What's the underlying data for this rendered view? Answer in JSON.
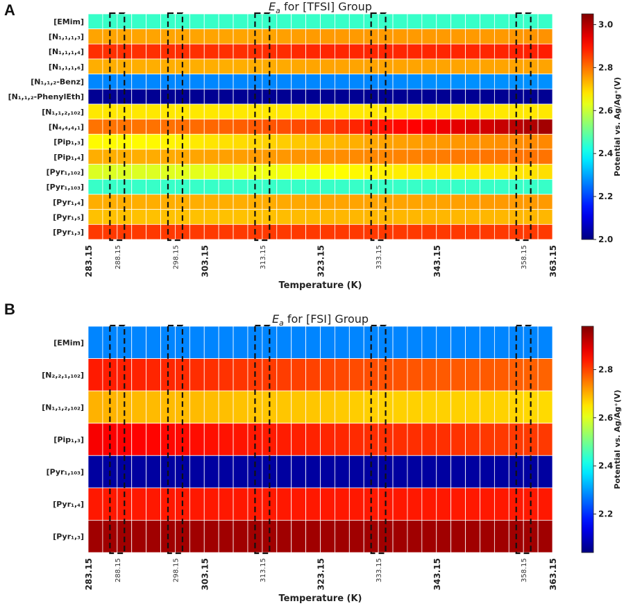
{
  "panels": [
    {
      "letter": "A"
    },
    {
      "letter": "B"
    }
  ],
  "chart_data": [
    {
      "type": "heatmap",
      "title_italic": "E",
      "title_sub": "a",
      "title_rest": " for [TFSI] Group",
      "xlabel": "Temperature (K)",
      "colorbar_label": "Potential vs. Ag/Ag⁺(V)",
      "colorbar_range": [
        2.0,
        3.05
      ],
      "colorbar_ticks": [
        "2.0",
        "2.2",
        "2.4",
        "2.6",
        "2.8",
        "3.0"
      ],
      "colorbar_tick_values": [
        2.0,
        2.2,
        2.4,
        2.6,
        2.8,
        3.0
      ],
      "temperature_range": [
        283.15,
        363.15
      ],
      "temperature_step": 2.5,
      "major_ticks": [
        "283.15",
        "303.15",
        "323.15",
        "343.15",
        "363.15"
      ],
      "major_tick_values": [
        283.15,
        303.15,
        323.15,
        343.15,
        363.15
      ],
      "minor_ticks": [
        "288.15",
        "298.15",
        "313.15",
        "333.15",
        "358.15"
      ],
      "minor_tick_values": [
        288.15,
        298.15,
        313.15,
        333.15,
        358.15
      ],
      "rows": [
        "[EMim]",
        "[N₁,₁,₁,₃]",
        "[N₁,₁,₁,₄]",
        "[N₁,₁,₁,₆]",
        "[N₁,₁,₂-Benz]",
        "[N₁,₁,₂-PhenylEth]",
        "[N₁,₁,₂,₁₀₂]",
        "[N₄,₄,₄,₁]",
        "[Pip₁,₃]",
        "[Pip₁,₄]",
        "[Pyr₁,₁₀₂]",
        "[Pyr₁,₁₀₃]",
        "[Pyr₁,₄]",
        "[Pyr₁,₅]",
        "[Pyr₁,₃]"
      ],
      "row_profiles": [
        [
          2.45,
          2.45,
          2.45,
          2.45,
          2.45,
          2.45,
          2.45,
          2.45,
          2.45
        ],
        [
          2.75,
          2.75,
          2.75,
          2.75,
          2.76,
          2.76,
          2.76,
          2.76,
          2.77
        ],
        [
          2.87,
          2.87,
          2.87,
          2.87,
          2.88,
          2.88,
          2.88,
          2.88,
          2.89
        ],
        [
          2.74,
          2.74,
          2.74,
          2.74,
          2.75,
          2.75,
          2.75,
          2.75,
          2.75
        ],
        [
          2.27,
          2.27,
          2.27,
          2.27,
          2.27,
          2.27,
          2.28,
          2.28,
          2.28
        ],
        [
          2.02,
          2.02,
          2.02,
          2.02,
          2.02,
          2.02,
          2.02,
          2.02,
          2.02
        ],
        [
          2.68,
          2.68,
          2.68,
          2.68,
          2.68,
          2.68,
          2.68,
          2.68,
          2.68
        ],
        [
          2.8,
          2.8,
          2.81,
          2.83,
          2.85,
          2.9,
          2.93,
          2.97,
          3.02
        ],
        [
          2.66,
          2.66,
          2.68,
          2.7,
          2.72,
          2.75,
          2.76,
          2.77,
          2.78
        ],
        [
          2.74,
          2.74,
          2.75,
          2.76,
          2.77,
          2.78,
          2.79,
          2.8,
          2.8
        ],
        [
          2.62,
          2.62,
          2.63,
          2.64,
          2.65,
          2.67,
          2.68,
          2.68,
          2.69
        ],
        [
          2.45,
          2.45,
          2.45,
          2.45,
          2.45,
          2.45,
          2.45,
          2.45,
          2.45
        ],
        [
          2.74,
          2.74,
          2.74,
          2.74,
          2.75,
          2.75,
          2.75,
          2.76,
          2.76
        ],
        [
          2.72,
          2.72,
          2.72,
          2.72,
          2.73,
          2.73,
          2.73,
          2.73,
          2.73
        ],
        [
          2.86,
          2.86,
          2.86,
          2.86,
          2.86,
          2.86,
          2.86,
          2.86,
          2.86
        ]
      ]
    },
    {
      "type": "heatmap",
      "title_italic": "E",
      "title_sub": "a",
      "title_rest": " for [FSI] Group",
      "xlabel": "Temperature (K)",
      "colorbar_label": "Potential vs. Ag/Ag⁺(V)",
      "colorbar_range": [
        2.04,
        2.98
      ],
      "colorbar_ticks": [
        "2.2",
        "2.4",
        "2.6",
        "2.8"
      ],
      "colorbar_tick_values": [
        2.2,
        2.4,
        2.6,
        2.8
      ],
      "temperature_range": [
        283.15,
        363.15
      ],
      "temperature_step": 2.5,
      "major_ticks": [
        "283.15",
        "303.15",
        "323.15",
        "343.15",
        "363.15"
      ],
      "major_tick_values": [
        283.15,
        303.15,
        323.15,
        343.15,
        363.15
      ],
      "minor_ticks": [
        "288.15",
        "298.15",
        "313.15",
        "333.15",
        "358.15"
      ],
      "minor_tick_values": [
        288.15,
        298.15,
        313.15,
        333.15,
        358.15
      ],
      "rows": [
        "[EMim]",
        "[N₂,₂,₁,₁₀₂]",
        "[N₁,₁,₂,₁₀₂]",
        "[Pip₁,₃]",
        "[Pyr₁,₁₀₃]",
        "[Pyr₁,₄]",
        "[Pyr₁,₃]"
      ],
      "row_profiles": [
        [
          2.28,
          2.28,
          2.28,
          2.28,
          2.28,
          2.28,
          2.28,
          2.28,
          2.28
        ],
        [
          2.84,
          2.83,
          2.82,
          2.81,
          2.8,
          2.79,
          2.78,
          2.78,
          2.77
        ],
        [
          2.7,
          2.69,
          2.69,
          2.68,
          2.68,
          2.67,
          2.67,
          2.67,
          2.66
        ],
        [
          2.87,
          2.86,
          2.85,
          2.84,
          2.83,
          2.82,
          2.82,
          2.81,
          2.81
        ],
        [
          2.07,
          2.07,
          2.07,
          2.07,
          2.07,
          2.07,
          2.07,
          2.07,
          2.07
        ],
        [
          2.84,
          2.84,
          2.84,
          2.84,
          2.84,
          2.84,
          2.84,
          2.84,
          2.84
        ],
        [
          2.95,
          2.95,
          2.95,
          2.95,
          2.95,
          2.95,
          2.95,
          2.95,
          2.95
        ]
      ]
    }
  ]
}
